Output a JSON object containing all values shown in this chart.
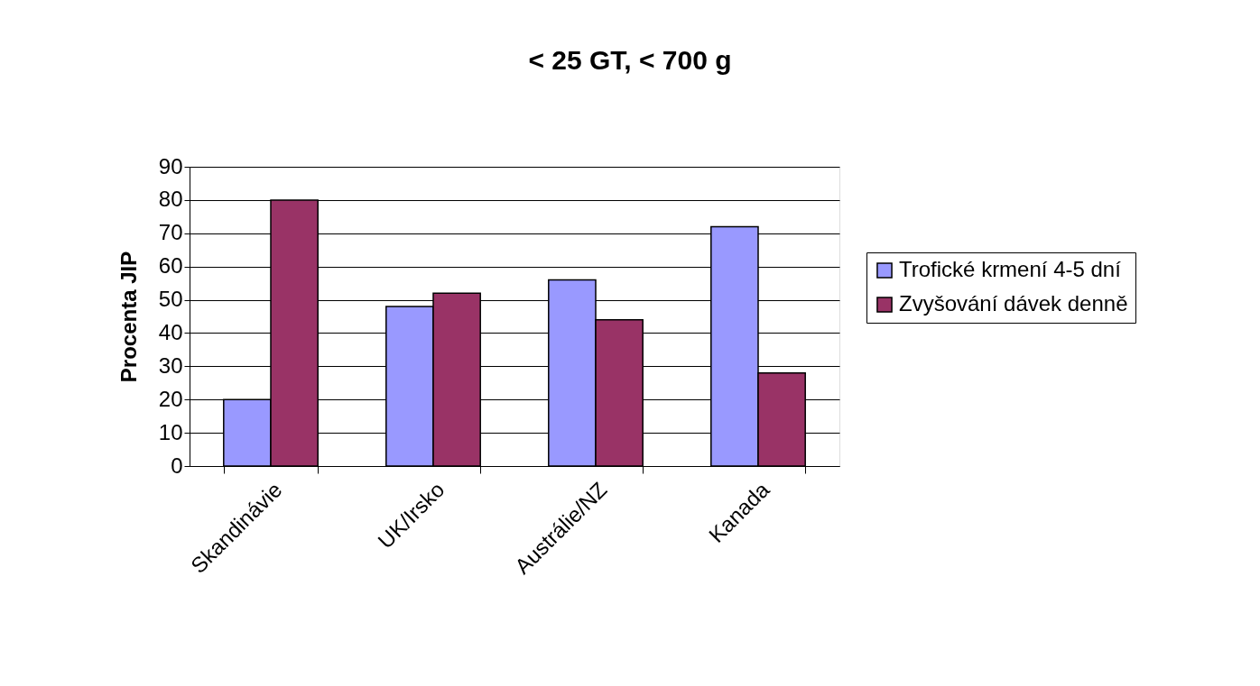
{
  "chart_data": {
    "type": "bar",
    "title": "< 25 GT, < 700 g",
    "ylabel": "Procenta JIP",
    "categories": [
      "Skandinávie",
      "UK/Irsko",
      "Austrálie/NZ",
      "Kanada"
    ],
    "series": [
      {
        "name": "Trofické krmení 4-5 dní",
        "color": "#9999ff",
        "values": [
          20,
          48,
          56,
          72
        ]
      },
      {
        "name": "Zvyšování dávek denně",
        "color": "#993366",
        "values": [
          80,
          52,
          44,
          28
        ]
      }
    ],
    "ylim": [
      0,
      90
    ],
    "yticks": [
      0,
      10,
      20,
      30,
      40,
      50,
      60,
      70,
      80,
      90
    ],
    "grid": "y",
    "legend": "right"
  }
}
